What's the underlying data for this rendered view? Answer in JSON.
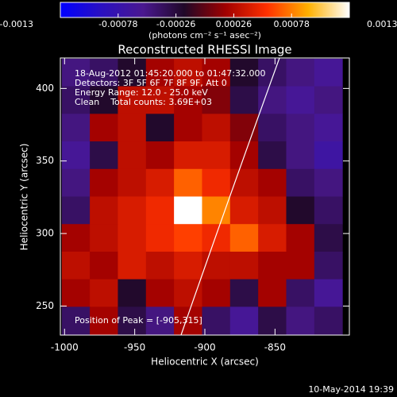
{
  "chart_data": {
    "type": "heatmap",
    "title": "Reconstructed RHESSI Image",
    "colorbar_label": "(photons cm⁻² s⁻¹ asec⁻²)",
    "annotations": [
      "18-Aug-2012 01:45:20.000 to 01:47:32.000",
      "Detectors: 3F 5F 6F 7F 8F 9F, Att 0",
      "Energy Range: 12.0 - 25.0 keV",
      "Clean    Total counts: 3.69E+03"
    ],
    "peak_label": "Position of Peak = [-905,315]",
    "footer": "10-May-2014 19:39",
    "xlabel": "Heliocentric X (arcsec)",
    "ylabel": "Heliocentric Y (arcsec)",
    "xlim": [
      -1003,
      -797
    ],
    "ylim": [
      230,
      421
    ],
    "xticks": [
      -1000,
      -950,
      -900,
      -850
    ],
    "yticks": [
      250,
      300,
      350,
      400
    ],
    "clim": [
      -0.0013,
      0.0013
    ],
    "cticks": [
      -0.0013,
      -0.00078,
      -0.00026,
      0.00026,
      0.00078,
      0.0013
    ],
    "colormap": [
      "#0000ff",
      "#2a10c0",
      "#4a1890",
      "#200828",
      "#a00000",
      "#ff3000",
      "#ffb000",
      "#ffffff"
    ],
    "x": [
      -992,
      -972,
      -952,
      -932,
      -912,
      -892,
      -872,
      -852,
      -832,
      -812
    ],
    "y": [
      411,
      392,
      373,
      354,
      335,
      316,
      297,
      278,
      259,
      240
    ],
    "z": [
      [
        -0.0005,
        -0.0004,
        -0.0002,
        0.0002,
        0.0003,
        0.0002,
        -0.0002,
        -0.0004,
        -0.0005,
        -0.0006
      ],
      [
        -0.0004,
        -0.0002,
        0.0003,
        0.0003,
        0.0002,
        0.0001,
        -0.0003,
        -0.0005,
        -0.0006,
        -0.0005
      ],
      [
        -0.0005,
        0.0002,
        0.0003,
        -0.0002,
        0.0002,
        0.0003,
        0.0001,
        -0.0004,
        -0.0005,
        -0.0006
      ],
      [
        -0.0006,
        -0.0003,
        0.0003,
        0.0002,
        0.0004,
        0.0004,
        0.0002,
        -0.0003,
        -0.0005,
        -0.0007
      ],
      [
        -0.0005,
        0.0002,
        0.0003,
        0.0004,
        0.0007,
        0.0005,
        0.0003,
        0.0002,
        -0.0004,
        -0.0005
      ],
      [
        -0.0004,
        0.0003,
        0.0004,
        0.0005,
        0.0013,
        0.0008,
        0.0004,
        0.0003,
        -0.0002,
        -0.0004
      ],
      [
        0.0002,
        0.0003,
        0.0004,
        0.0005,
        0.0006,
        0.0005,
        0.0007,
        0.0004,
        0.0002,
        -0.0003
      ],
      [
        0.0003,
        0.0002,
        0.0004,
        0.0003,
        0.0004,
        0.0003,
        0.0003,
        0.0002,
        0.0002,
        -0.0004
      ],
      [
        0.0002,
        0.0003,
        -0.0002,
        0.0002,
        0.0003,
        0.0002,
        -0.0003,
        0.0002,
        -0.0004,
        -0.0006
      ],
      [
        -0.0004,
        0.0002,
        -0.0003,
        -0.0005,
        0.0002,
        -0.0004,
        -0.0006,
        -0.0003,
        -0.0005,
        -0.0004
      ]
    ]
  }
}
